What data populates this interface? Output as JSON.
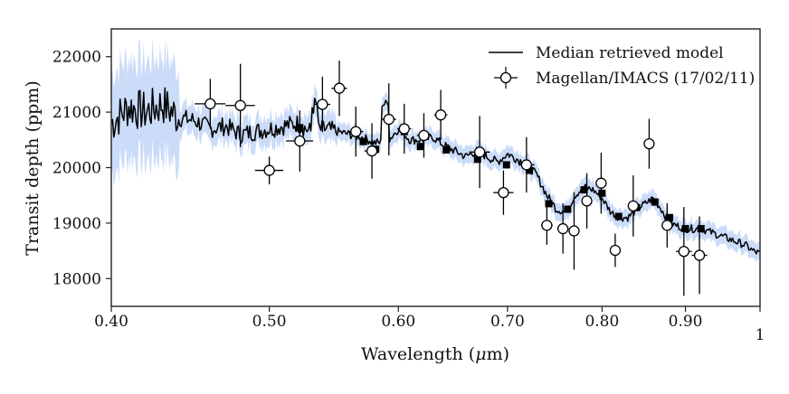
{
  "chart_data": {
    "type": "line",
    "title": "",
    "xlabel_prefix": "Wavelength (",
    "xlabel_mu": "μ",
    "xlabel_suffix": "m)",
    "ylabel": "Transit depth (ppm)",
    "xscale": "log",
    "xlim": [
      0.4,
      1.0
    ],
    "ylim": [
      17500,
      22500
    ],
    "x_ticks": [
      0.4,
      0.5,
      0.6,
      0.7,
      0.8,
      0.9,
      1.0
    ],
    "x_tick_labels": [
      "0.40",
      "0.50",
      "0.60",
      "0.70",
      "0.80",
      "0.90",
      "1"
    ],
    "y_ticks": [
      18000,
      19000,
      20000,
      21000,
      22000
    ],
    "y_tick_labels": [
      "18000",
      "19000",
      "20000",
      "21000",
      "22000"
    ],
    "legend": {
      "position": "top-right",
      "entries": [
        "Median retrieved model",
        "Magellan/IMACS (17/02/11)"
      ]
    },
    "model_anchor_points": {
      "name": "Median retrieved model",
      "x": [
        0.4,
        0.41,
        0.42,
        0.43,
        0.44,
        0.45,
        0.46,
        0.47,
        0.48,
        0.49,
        0.5,
        0.51,
        0.52,
        0.53,
        0.54,
        0.55,
        0.56,
        0.57,
        0.58,
        0.59,
        0.6,
        0.61,
        0.62,
        0.63,
        0.64,
        0.65,
        0.66,
        0.67,
        0.68,
        0.69,
        0.7,
        0.71,
        0.72,
        0.73,
        0.74,
        0.75,
        0.76,
        0.77,
        0.78,
        0.79,
        0.8,
        0.81,
        0.82,
        0.83,
        0.84,
        0.85,
        0.86,
        0.87,
        0.88,
        0.89,
        0.9,
        0.91,
        0.92,
        0.93,
        0.94,
        0.95,
        0.96,
        0.97,
        0.98,
        0.99,
        1.0
      ],
      "y": [
        20800,
        21100,
        21000,
        21150,
        20900,
        20850,
        20700,
        20750,
        20600,
        20650,
        20700,
        20750,
        20800,
        20650,
        20700,
        20650,
        20600,
        20550,
        20450,
        20450,
        20700,
        20500,
        20500,
        20550,
        20400,
        20300,
        20200,
        20300,
        20200,
        20100,
        20250,
        20150,
        20050,
        19850,
        19500,
        19250,
        19200,
        19500,
        19650,
        19600,
        19450,
        19200,
        19100,
        19100,
        19250,
        19350,
        19450,
        19250,
        19000,
        18950,
        18900,
        18900,
        18900,
        18850,
        18800,
        18750,
        18700,
        18650,
        18600,
        18500,
        18450
      ]
    },
    "model_binned": {
      "x": [
        0.522,
        0.571,
        0.581,
        0.605,
        0.619,
        0.642,
        0.671,
        0.699,
        0.722,
        0.742,
        0.762,
        0.78,
        0.8,
        0.819,
        0.84,
        0.862,
        0.88,
        0.9,
        0.92
      ],
      "y": [
        20720,
        20470,
        20330,
        20650,
        20380,
        20320,
        20150,
        20050,
        19950,
        19350,
        19250,
        19600,
        19540,
        19120,
        19280,
        19380,
        19100,
        18900,
        18900
      ]
    },
    "observations": {
      "name": "Magellan/IMACS (17/02/11)",
      "x": [
        0.46,
        0.48,
        0.5,
        0.522,
        0.539,
        0.552,
        0.565,
        0.578,
        0.592,
        0.605,
        0.622,
        0.637,
        0.673,
        0.696,
        0.719,
        0.74,
        0.757,
        0.769,
        0.783,
        0.799,
        0.815,
        0.836,
        0.855,
        0.877,
        0.898,
        0.918
      ],
      "y": [
        21150,
        21120,
        19950,
        20480,
        21140,
        21430,
        20650,
        20300,
        20870,
        20700,
        20580,
        20950,
        20280,
        19550,
        20050,
        18960,
        18900,
        18860,
        19400,
        19720,
        18510,
        19310,
        20430,
        18960,
        18490,
        18420
      ],
      "yerr": [
        450,
        750,
        250,
        550,
        500,
        500,
        450,
        500,
        650,
        450,
        400,
        450,
        650,
        400,
        500,
        350,
        450,
        700,
        500,
        550,
        300,
        550,
        450,
        400,
        800,
        700
      ],
      "xerr": [
        0.01,
        0.01,
        0.01,
        0.01,
        0.006,
        0.006,
        0.006,
        0.006,
        0.006,
        0.006,
        0.006,
        0.006,
        0.01,
        0.01,
        0.008,
        0.006,
        0.006,
        0.006,
        0.006,
        0.006,
        0.006,
        0.006,
        0.006,
        0.006,
        0.01,
        0.01
      ]
    },
    "colors": {
      "model": "#000000",
      "uncertainty_band": "#a9c4f5",
      "marker_edge": "#000000",
      "marker_fill": "#ffffff",
      "axis": "#222222"
    }
  }
}
